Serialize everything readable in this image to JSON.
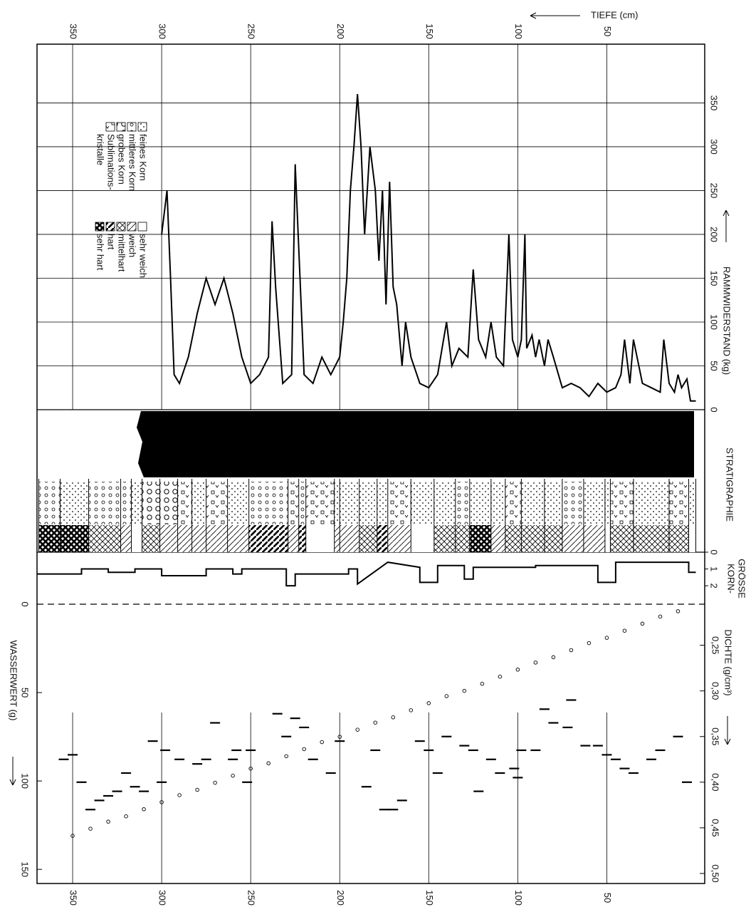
{
  "chart_data": [
    {
      "type": "line",
      "xlabel": "TIEFE (cm)",
      "ylabel": "RAMMWIDERSTAND (kg)",
      "color": "#000000",
      "grid": true,
      "xlim": [
        -5,
        370
      ],
      "xticks": [
        50,
        100,
        150,
        200,
        250,
        300,
        350
      ],
      "ylim": [
        0,
        417
      ],
      "yticks": [
        0,
        50,
        100,
        150,
        200,
        250,
        300,
        350
      ],
      "x": [
        0,
        3,
        5,
        8,
        10,
        12,
        15,
        18,
        20,
        25,
        30,
        35,
        37,
        40,
        42,
        45,
        50,
        55,
        60,
        65,
        70,
        75,
        80,
        83,
        85,
        88,
        90,
        92,
        95,
        96,
        98,
        100,
        103,
        105,
        108,
        112,
        115,
        118,
        122,
        125,
        128,
        133,
        137,
        140,
        145,
        150,
        155,
        160,
        163,
        165,
        168,
        170,
        172,
        174,
        176,
        178,
        180,
        183,
        186,
        188,
        190,
        192,
        194,
        196,
        198,
        200,
        205,
        210,
        215,
        220,
        225,
        227,
        232,
        236,
        238,
        240,
        245,
        250,
        255,
        260,
        265,
        270,
        275,
        280,
        285,
        290,
        293,
        295,
        297,
        300
      ],
      "values": [
        10,
        10,
        35,
        25,
        40,
        20,
        30,
        80,
        20,
        25,
        30,
        80,
        30,
        80,
        40,
        25,
        20,
        30,
        15,
        25,
        30,
        25,
        60,
        80,
        50,
        80,
        60,
        85,
        70,
        200,
        80,
        60,
        80,
        200,
        50,
        60,
        100,
        60,
        80,
        160,
        60,
        70,
        50,
        100,
        40,
        25,
        30,
        60,
        100,
        50,
        120,
        140,
        260,
        120,
        250,
        170,
        250,
        300,
        200,
        300,
        360,
        300,
        250,
        150,
        100,
        60,
        40,
        60,
        30,
        40,
        280,
        40,
        30,
        140,
        215,
        60,
        40,
        30,
        60,
        110,
        150,
        120,
        150,
        110,
        60,
        30,
        40,
        150,
        250,
        200
      ]
    },
    {
      "type": "stratigraphy",
      "title": "STRATIGRAPHIE",
      "xlim": [
        -5,
        370
      ],
      "boundaries": [
        0,
        4,
        15,
        35,
        48,
        51,
        63,
        75,
        85,
        98,
        107,
        115,
        127,
        135,
        147,
        160,
        173,
        179,
        189,
        200,
        203,
        219,
        223,
        229,
        251,
        263,
        275,
        283,
        291,
        301,
        311,
        317,
        323,
        341,
        357,
        369
      ],
      "grain": [
        0,
        3,
        0,
        3,
        0,
        0,
        1,
        0,
        0,
        3,
        0,
        0,
        1,
        0,
        0,
        3,
        0,
        0,
        0,
        0,
        3,
        1,
        3,
        1,
        0,
        3,
        0,
        3,
        2,
        2,
        0,
        1,
        1,
        0,
        1
      ],
      "hardness": [
        0,
        2,
        2,
        2,
        0,
        1,
        1,
        2,
        2,
        2,
        1,
        4,
        2,
        2,
        0,
        1,
        3,
        2,
        1,
        1,
        0,
        3,
        1,
        3,
        1,
        1,
        1,
        1,
        1,
        2,
        0,
        1,
        2,
        4,
        4
      ],
      "legend_grain": [
        [
          "feines Korn"
        ],
        [
          "mittleres Korn"
        ],
        [
          "grobes Korn"
        ],
        [
          "Sublimations-",
          "kristalle"
        ]
      ],
      "legend_hardness": [
        [
          "sehr weich"
        ],
        [
          "weich"
        ],
        [
          "mittelhart"
        ],
        [
          "hart"
        ],
        [
          "sehr hart"
        ]
      ]
    },
    {
      "type": "line",
      "title": [
        "KORN-",
        "GRÖSSE"
      ],
      "color": "#000000",
      "xlim": [
        -5,
        370
      ],
      "ylim": [
        0,
        3.1
      ],
      "yticks": [
        0,
        1,
        2
      ],
      "x": [
        0,
        4,
        4,
        45,
        45,
        55,
        55,
        90,
        90,
        125,
        125,
        130,
        130,
        145,
        145,
        155,
        155,
        173,
        190,
        190,
        195,
        195,
        225,
        225,
        230,
        230,
        255,
        255,
        260,
        260,
        275,
        275,
        300,
        300,
        315,
        315,
        330,
        330,
        345,
        345,
        370
      ],
      "values": [
        1.2,
        1.2,
        0.6,
        0.6,
        1.8,
        1.8,
        0.8,
        0.8,
        0.9,
        0.9,
        1.6,
        1.6,
        0.8,
        0.8,
        1.8,
        1.8,
        0.9,
        0.6,
        1.9,
        1.0,
        1.0,
        1.3,
        1.3,
        2.0,
        2.0,
        1.0,
        1.0,
        1.3,
        1.3,
        1.0,
        1.0,
        1.4,
        1.4,
        1.0,
        1.0,
        1.2,
        1.2,
        1.0,
        1.0,
        1.3,
        1.3
      ]
    },
    {
      "type": "scatter",
      "ylabel": "WASSERWERT (g)",
      "y2label": "DICHTE (g/cm³)",
      "xlim": [
        -5,
        370
      ],
      "xticks": [
        50,
        100,
        150,
        200,
        250,
        300,
        350
      ],
      "ylim": [
        0,
        158
      ],
      "yticks": [
        0,
        50,
        100,
        150
      ],
      "y2lim": [
        0.205,
        0.511
      ],
      "y2ticks": [
        {
          "value": 0.25,
          "label": "0,25"
        },
        {
          "value": 0.3,
          "label": "0,30"
        },
        {
          "value": 0.35,
          "label": "0,35"
        },
        {
          "value": 0.4,
          "label": "0,40"
        },
        {
          "value": 0.45,
          "label": "0,45"
        },
        {
          "value": 0.5,
          "label": "0,50"
        }
      ],
      "series": [
        {
          "axis": "y",
          "marker": "circle",
          "color": "#000000",
          "x": [
            10,
            20,
            30,
            40,
            50,
            60,
            70,
            80,
            90,
            100,
            110,
            120,
            130,
            140,
            150,
            160,
            170,
            180,
            190,
            200,
            210,
            220,
            230,
            240,
            250,
            260,
            270,
            280,
            290,
            300,
            310,
            320,
            330,
            340,
            350
          ],
          "values": [
            4,
            7,
            11,
            15,
            19,
            22,
            26,
            30,
            33,
            37,
            41,
            45,
            49,
            52,
            56,
            60,
            64,
            67,
            71,
            75,
            78,
            82,
            86,
            90,
            93,
            97,
            101,
            105,
            108,
            112,
            116,
            120,
            123,
            127,
            131
          ]
        },
        {
          "axis": "y2",
          "marker": "dash",
          "color": "#000000",
          "x": [
            5,
            10,
            20,
            25,
            35,
            40,
            45,
            50,
            55,
            62,
            70,
            72,
            80,
            85,
            90,
            98,
            100,
            102,
            110,
            115,
            122,
            125,
            130,
            140,
            145,
            150,
            155,
            165,
            170,
            175,
            180,
            185,
            200,
            205,
            215,
            220,
            225,
            230,
            235,
            250,
            252,
            258,
            260,
            270,
            275,
            280,
            290,
            298,
            300,
            305,
            310,
            315,
            320,
            325,
            330,
            335,
            340,
            345,
            350,
            355
          ],
          "values": [
            0.4,
            0.35,
            0.365,
            0.375,
            0.39,
            0.385,
            0.375,
            0.37,
            0.36,
            0.36,
            0.31,
            0.34,
            0.335,
            0.32,
            0.365,
            0.365,
            0.395,
            0.385,
            0.39,
            0.375,
            0.41,
            0.365,
            0.36,
            0.35,
            0.39,
            0.365,
            0.355,
            0.42,
            0.43,
            0.43,
            0.365,
            0.405,
            0.355,
            0.39,
            0.375,
            0.34,
            0.33,
            0.35,
            0.325,
            0.365,
            0.4,
            0.365,
            0.375,
            0.335,
            0.375,
            0.38,
            0.375,
            0.365,
            0.4,
            0.355,
            0.41,
            0.405,
            0.39,
            0.41,
            0.415,
            0.42,
            0.43,
            0.4,
            0.37,
            0.375
          ]
        }
      ]
    }
  ]
}
